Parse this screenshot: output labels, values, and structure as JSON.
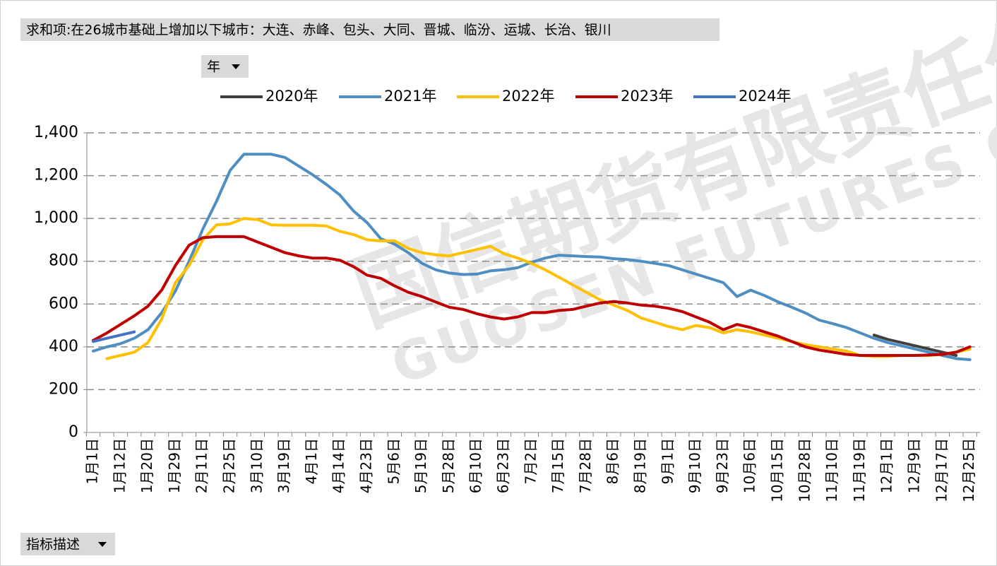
{
  "chart_data": {
    "type": "line",
    "title": "求和项:在26城市基础上增加以下城市：大连、赤峰、包头、大同、晋城、临汾、运城、长治、银川",
    "filter_button": "年",
    "axis_button": "指标描述",
    "watermark": [
      "国信期货有限责任公司",
      "GUOSEN FUTURES CO.,"
    ],
    "categories": [
      "1月1日",
      null,
      "1月12日",
      null,
      "1月20日",
      null,
      "1月29日",
      null,
      "2月11日",
      null,
      "2月25日",
      null,
      "3月10日",
      null,
      "3月19日",
      null,
      "4月1日",
      null,
      "4月14日",
      null,
      "4月23日",
      null,
      "5月6日",
      null,
      "5月19日",
      null,
      "5月28日",
      null,
      "6月10日",
      null,
      "6月23日",
      null,
      "7月2日",
      null,
      "7月15日",
      null,
      "7月28日",
      null,
      "8月6日",
      null,
      "8月19日",
      null,
      "9月1日",
      null,
      "9月10日",
      null,
      "9月23日",
      null,
      "10月6日",
      null,
      "10月15日",
      null,
      "10月28日",
      null,
      "11月10日",
      null,
      "11月19日",
      null,
      "12月1日",
      null,
      "12月9日",
      null,
      "12月17日",
      null,
      "12月25日"
    ],
    "series": [
      {
        "name": "2020年",
        "color": "#404040",
        "values": [
          null,
          null,
          null,
          null,
          null,
          null,
          null,
          null,
          null,
          null,
          null,
          null,
          null,
          null,
          null,
          null,
          null,
          null,
          null,
          null,
          null,
          null,
          null,
          null,
          null,
          null,
          null,
          null,
          null,
          null,
          null,
          null,
          null,
          null,
          null,
          null,
          null,
          null,
          null,
          null,
          null,
          null,
          null,
          null,
          null,
          null,
          null,
          null,
          null,
          null,
          null,
          null,
          null,
          null,
          null,
          null,
          null,
          455,
          435,
          420,
          405,
          390,
          375,
          360,
          null
        ]
      },
      {
        "name": "2021年",
        "color": "#4e8ec2",
        "values": [
          380,
          400,
          415,
          440,
          480,
          560,
          660,
          800,
          950,
          1080,
          1225,
          1300,
          1300,
          1300,
          1285,
          1245,
          1205,
          1160,
          1110,
          1035,
          980,
          905,
          880,
          840,
          790,
          760,
          745,
          738,
          740,
          755,
          760,
          770,
          795,
          815,
          828,
          825,
          822,
          820,
          812,
          808,
          800,
          790,
          780,
          760,
          740,
          720,
          700,
          635,
          665,
          640,
          610,
          585,
          558,
          525,
          508,
          490,
          465,
          440,
          420,
          405,
          390,
          375,
          360,
          345,
          340
        ]
      },
      {
        "name": "2022年",
        "color": "#ffc000",
        "values": [
          null,
          345,
          360,
          375,
          420,
          530,
          700,
          780,
          900,
          970,
          975,
          1000,
          995,
          970,
          968,
          968,
          968,
          965,
          940,
          925,
          900,
          895,
          895,
          860,
          840,
          830,
          825,
          840,
          855,
          870,
          835,
          815,
          790,
          760,
          725,
          690,
          655,
          620,
          595,
          570,
          535,
          515,
          495,
          480,
          500,
          490,
          465,
          480,
          470,
          455,
          440,
          425,
          410,
          400,
          390,
          380,
          360,
          355,
          355,
          360,
          360,
          360,
          365,
          375,
          390
        ]
      },
      {
        "name": "2023年",
        "color": "#c00000",
        "values": [
          430,
          465,
          505,
          545,
          590,
          665,
          780,
          875,
          910,
          915,
          915,
          915,
          890,
          865,
          840,
          825,
          815,
          815,
          805,
          775,
          735,
          720,
          685,
          655,
          635,
          610,
          585,
          575,
          555,
          540,
          530,
          540,
          560,
          560,
          570,
          575,
          590,
          605,
          612,
          605,
          595,
          590,
          580,
          565,
          540,
          515,
          480,
          505,
          490,
          470,
          450,
          425,
          400,
          385,
          375,
          365,
          360,
          360,
          360,
          360,
          360,
          362,
          365,
          375,
          400
        ]
      },
      {
        "name": "2024年",
        "color": "#4472c4",
        "values": [
          425,
          440,
          455,
          470,
          null,
          null,
          null,
          null,
          null,
          null,
          null,
          null,
          null,
          null,
          null,
          null,
          null,
          null,
          null,
          null,
          null,
          null,
          null,
          null,
          null,
          null,
          null,
          null,
          null,
          null,
          null,
          null,
          null,
          null,
          null,
          null,
          null,
          null,
          null,
          null,
          null,
          null,
          null,
          null,
          null,
          null,
          null,
          null,
          null,
          null,
          null,
          null,
          null,
          null,
          null,
          null,
          null,
          null,
          null,
          null,
          null,
          null,
          null,
          null,
          null
        ]
      }
    ],
    "ylim": [
      0,
      1400
    ],
    "yticks": [
      0,
      200,
      400,
      600,
      800,
      {
        "value": 1000,
        "label": "1,000"
      },
      {
        "value": 1200,
        "label": "1,200"
      },
      {
        "value": 1400,
        "label": "1,400"
      }
    ],
    "grid": true
  }
}
